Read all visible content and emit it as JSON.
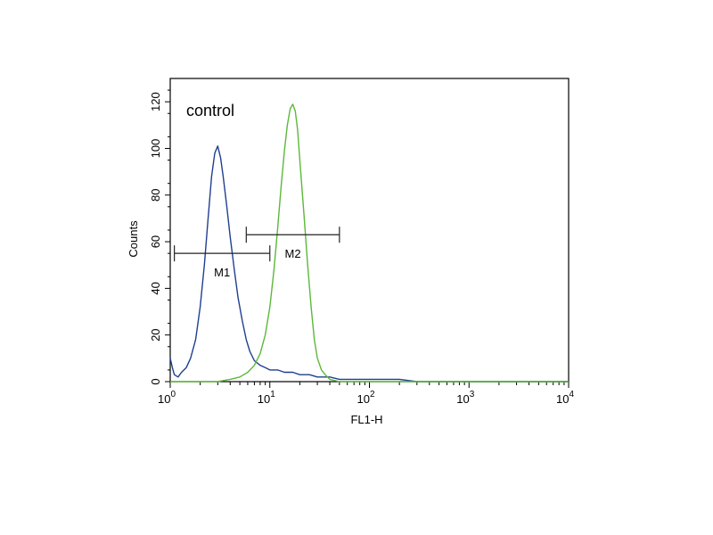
{
  "chart_data": {
    "type": "line",
    "annotation": "control",
    "xlabel": "FL1-H",
    "ylabel": "Counts",
    "xscale": "log",
    "xlim": [
      1,
      10000
    ],
    "ylim": [
      0,
      130
    ],
    "x_ticks": [
      {
        "value": 1,
        "base": "10",
        "exp": "0"
      },
      {
        "value": 10,
        "base": "10",
        "exp": "1"
      },
      {
        "value": 100,
        "base": "10",
        "exp": "2"
      },
      {
        "value": 1000,
        "base": "10",
        "exp": "3"
      },
      {
        "value": 10000,
        "base": "10",
        "exp": "4"
      }
    ],
    "y_ticks": [
      "0",
      "20",
      "40",
      "60",
      "80",
      "100",
      "120"
    ],
    "grid": false,
    "series": [
      {
        "color": "#1f3f8f",
        "x": [
          1.0,
          1.05,
          1.1,
          1.2,
          1.3,
          1.45,
          1.6,
          1.8,
          2.0,
          2.2,
          2.4,
          2.6,
          2.8,
          3.0,
          3.2,
          3.4,
          3.7,
          4.0,
          4.4,
          4.8,
          5.3,
          5.8,
          6.3,
          7.0,
          8.0,
          9.0,
          10.0,
          12,
          14,
          17,
          20,
          25,
          30,
          40,
          50,
          70,
          100,
          200,
          300,
          500,
          1000,
          3000,
          10000
        ],
        "y": [
          10,
          6,
          3,
          2,
          4,
          6,
          10,
          18,
          32,
          50,
          70,
          88,
          98,
          101,
          96,
          88,
          75,
          62,
          48,
          36,
          26,
          18,
          13,
          9,
          7,
          6,
          5,
          5,
          4,
          4,
          3,
          3,
          2,
          2,
          1,
          1,
          1,
          1,
          0,
          0,
          0,
          0,
          0
        ]
      },
      {
        "color": "#5cb83a",
        "x": [
          1.0,
          2.0,
          3.0,
          4.0,
          5.0,
          6.0,
          7.0,
          8.0,
          9.0,
          10.0,
          11.0,
          12.0,
          13.0,
          14.0,
          15.0,
          16.0,
          17.0,
          18.0,
          19.0,
          20.0,
          22.0,
          24.0,
          26.0,
          28.0,
          30.0,
          33.0,
          36.0,
          40.0,
          50.0,
          100,
          1000,
          10000
        ],
        "y": [
          0,
          0,
          0,
          1,
          2,
          4,
          7,
          12,
          20,
          32,
          48,
          66,
          84,
          99,
          110,
          117,
          119,
          116,
          108,
          95,
          72,
          50,
          32,
          18,
          10,
          5,
          3,
          1,
          0,
          0,
          0,
          0
        ]
      }
    ],
    "markers": [
      {
        "label": "M1",
        "x_start": 1.1,
        "x_end": 10.0,
        "y": 55
      },
      {
        "label": "M2",
        "x_start": 5.8,
        "x_end": 50.0,
        "y": 63
      }
    ]
  }
}
